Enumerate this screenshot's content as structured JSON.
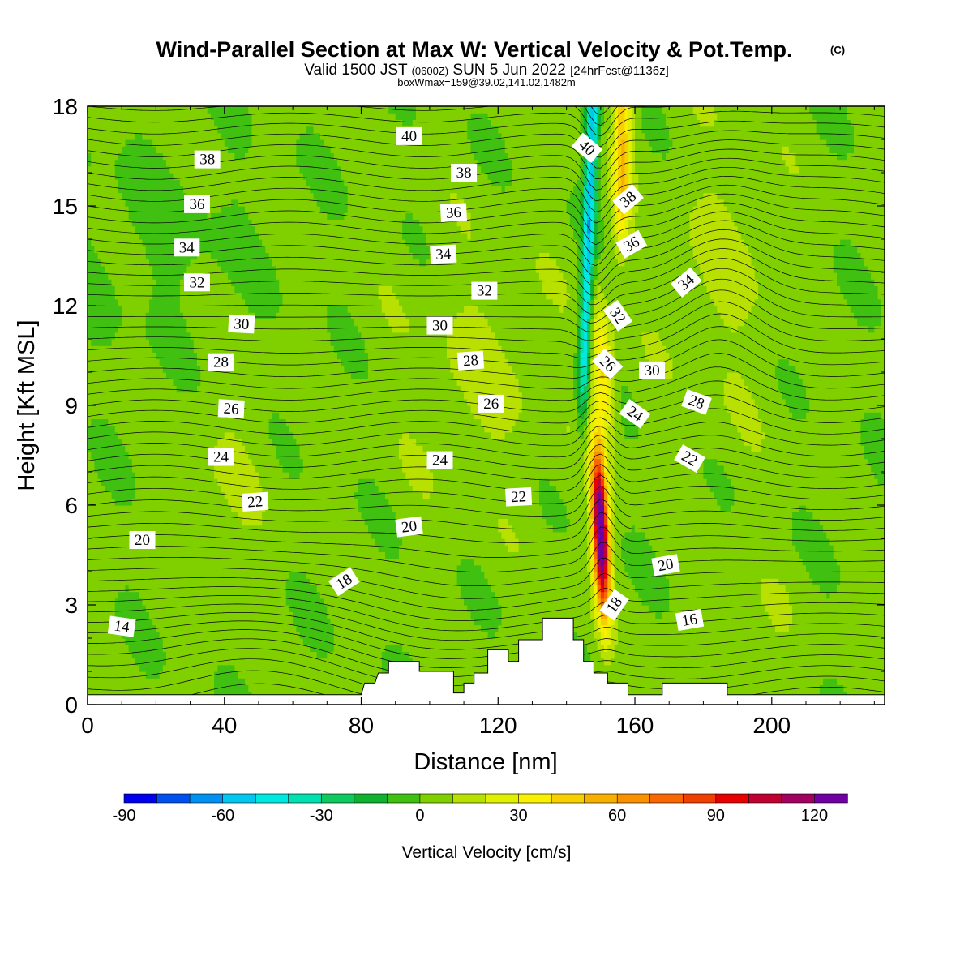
{
  "header": {
    "title_main": "Wind-Parallel Section at Max W: Vertical Velocity & Pot.Temp.",
    "title_mark": "(C)",
    "valid_prefix": "Valid 1500 JST",
    "valid_utc": "(0600Z)",
    "valid_date": "SUN 5 Jun 2022",
    "forecast": "[24hrFcst@1136z]",
    "box_max": "boxWmax=159@39.02,141.02,1482m"
  },
  "colorbar": {
    "title": "Vertical Velocity [cm/s]",
    "levels": [
      -90,
      -80,
      -70,
      -60,
      -50,
      -40,
      -30,
      -20,
      -10,
      0,
      10,
      20,
      30,
      40,
      50,
      60,
      70,
      80,
      90,
      100,
      110,
      120,
      130
    ],
    "tick_labels": [
      "-90",
      "-60",
      "-30",
      "0",
      "30",
      "60",
      "90",
      "120"
    ],
    "colors": [
      "#0000f0",
      "#0050f0",
      "#0090f0",
      "#00c8f0",
      "#00e8e0",
      "#00e0b0",
      "#10c860",
      "#10b030",
      "#40c010",
      "#80d000",
      "#b8e000",
      "#e0f000",
      "#f8f000",
      "#f8d000",
      "#f8b000",
      "#f89000",
      "#f86800",
      "#f04000",
      "#e80000",
      "#c00030",
      "#a00060",
      "#7000a0"
    ]
  },
  "chart_data": {
    "type": "heatmap",
    "title": "Wind-Parallel Section at Max W: Vertical Velocity & Pot.Temp.",
    "xlabel": "Distance [nm]",
    "ylabel": "Height [Kft MSL]",
    "xlim": [
      0,
      233
    ],
    "ylim": [
      0,
      18
    ],
    "x_ticks": [
      "0",
      "40",
      "80",
      "120",
      "160",
      "200"
    ],
    "y_ticks": [
      "0",
      "3",
      "6",
      "9",
      "12",
      "15",
      "18"
    ],
    "fill_variable": "Vertical Velocity [cm/s]",
    "contour_variable": "Potential Temperature",
    "max_w_cm_s": 159,
    "updraft_core": {
      "x": 150,
      "y_bottom": 2.8,
      "y_top": 8.5,
      "peak_y": 5.2
    },
    "downdraft_core": {
      "x": 150,
      "y_bottom": 9.0,
      "y_top": 18
    },
    "terrain": [
      [
        0,
        0.3
      ],
      [
        80,
        0.3
      ],
      [
        81,
        0.65
      ],
      [
        84,
        0.65
      ],
      [
        85,
        0.95
      ],
      [
        88,
        0.95
      ],
      [
        88,
        1.3
      ],
      [
        97,
        1.3
      ],
      [
        97,
        1.0
      ],
      [
        107,
        1.0
      ],
      [
        107,
        0.35
      ],
      [
        110,
        0.35
      ],
      [
        110,
        0.65
      ],
      [
        113,
        0.65
      ],
      [
        113,
        0.95
      ],
      [
        117,
        0.95
      ],
      [
        117,
        1.65
      ],
      [
        123,
        1.65
      ],
      [
        123,
        1.3
      ],
      [
        126,
        1.3
      ],
      [
        126,
        1.95
      ],
      [
        133,
        1.95
      ],
      [
        133,
        2.6
      ],
      [
        142,
        2.6
      ],
      [
        142,
        1.95
      ],
      [
        145,
        1.95
      ],
      [
        145,
        1.3
      ],
      [
        148,
        1.3
      ],
      [
        148,
        0.95
      ],
      [
        152,
        0.95
      ],
      [
        152,
        0.65
      ],
      [
        158,
        0.65
      ],
      [
        158,
        0.3
      ],
      [
        168,
        0.3
      ],
      [
        168,
        0.65
      ],
      [
        187,
        0.65
      ],
      [
        187,
        0.3
      ],
      [
        233,
        0.3
      ]
    ],
    "contour_labels": [
      {
        "text": "14",
        "x": 10,
        "y": 2.35,
        "angle": 8
      },
      {
        "text": "20",
        "x": 16,
        "y": 4.95,
        "angle": 0
      },
      {
        "text": "22",
        "x": 49,
        "y": 6.1,
        "angle": -4
      },
      {
        "text": "24",
        "x": 39,
        "y": 7.45,
        "angle": 0
      },
      {
        "text": "26",
        "x": 42,
        "y": 8.9,
        "angle": 3
      },
      {
        "text": "28",
        "x": 39,
        "y": 10.3,
        "angle": 0
      },
      {
        "text": "30",
        "x": 45,
        "y": 11.45,
        "angle": 3
      },
      {
        "text": "32",
        "x": 32,
        "y": 12.7,
        "angle": 0
      },
      {
        "text": "34",
        "x": 29,
        "y": 13.75,
        "angle": 0
      },
      {
        "text": "36",
        "x": 32,
        "y": 15.05,
        "angle": 0
      },
      {
        "text": "38",
        "x": 35,
        "y": 16.4,
        "angle": 0
      },
      {
        "text": "40",
        "x": 94,
        "y": 17.1,
        "angle": 0
      },
      {
        "text": "38",
        "x": 110,
        "y": 16.0,
        "angle": 0
      },
      {
        "text": "36",
        "x": 107,
        "y": 14.8,
        "angle": -3
      },
      {
        "text": "34",
        "x": 104,
        "y": 13.55,
        "angle": -3
      },
      {
        "text": "32",
        "x": 116,
        "y": 12.45,
        "angle": 0
      },
      {
        "text": "30",
        "x": 103,
        "y": 11.4,
        "angle": 0
      },
      {
        "text": "28",
        "x": 112,
        "y": 10.35,
        "angle": -4
      },
      {
        "text": "26",
        "x": 118,
        "y": 9.05,
        "angle": 0
      },
      {
        "text": "24",
        "x": 103,
        "y": 7.35,
        "angle": 0
      },
      {
        "text": "22",
        "x": 126,
        "y": 6.25,
        "angle": -3
      },
      {
        "text": "20",
        "x": 94,
        "y": 5.35,
        "angle": -7
      },
      {
        "text": "18",
        "x": 75,
        "y": 3.7,
        "angle": -33
      },
      {
        "text": "40",
        "x": 146,
        "y": 16.75,
        "angle": 40
      },
      {
        "text": "38",
        "x": 158,
        "y": 15.2,
        "angle": -40
      },
      {
        "text": "36",
        "x": 159,
        "y": 13.85,
        "angle": -30
      },
      {
        "text": "34",
        "x": 175,
        "y": 12.7,
        "angle": -40
      },
      {
        "text": "32",
        "x": 155,
        "y": 11.7,
        "angle": 55
      },
      {
        "text": "26",
        "x": 152,
        "y": 10.25,
        "angle": 45
      },
      {
        "text": "30",
        "x": 165,
        "y": 10.05,
        "angle": 0
      },
      {
        "text": "28",
        "x": 178,
        "y": 9.1,
        "angle": 20
      },
      {
        "text": "24",
        "x": 160,
        "y": 8.75,
        "angle": 35
      },
      {
        "text": "22",
        "x": 176,
        "y": 7.4,
        "angle": 30
      },
      {
        "text": "20",
        "x": 169,
        "y": 4.2,
        "angle": -10
      },
      {
        "text": "18",
        "x": 154,
        "y": 3.0,
        "angle": -55
      },
      {
        "text": "16",
        "x": 176,
        "y": 2.55,
        "angle": -10
      }
    ]
  }
}
